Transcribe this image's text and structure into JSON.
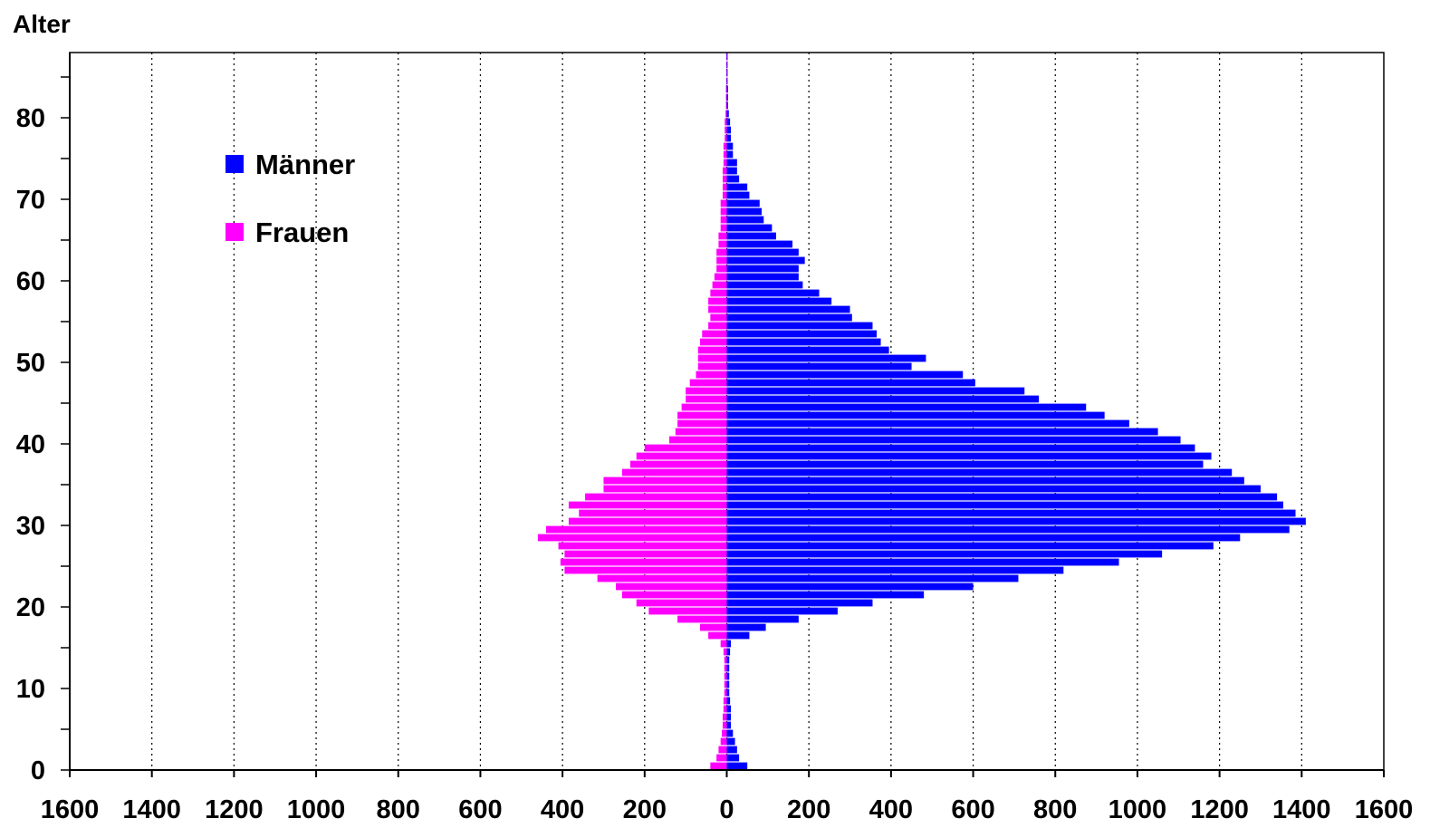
{
  "chart_data": {
    "type": "bar",
    "orientation": "horizontal",
    "subtype": "population-pyramid",
    "y_axis_label": "Alter",
    "x_tick_labels": [
      "1600",
      "1400",
      "1200",
      "1000",
      "800",
      "600",
      "400",
      "200",
      "0",
      "200",
      "400",
      "600",
      "800",
      "1000",
      "1200",
      "1400",
      "1600"
    ],
    "y_tick_labels": [
      "0",
      "10",
      "20",
      "30",
      "40",
      "50",
      "60",
      "70",
      "80"
    ],
    "x_range": [
      -1600,
      1600
    ],
    "y_range": [
      0,
      88
    ],
    "grid": "vertical dotted",
    "legend_position": "top-left",
    "series": [
      {
        "name": "Männer",
        "color": "#0000ff",
        "direction": "right",
        "ages": [
          0,
          1,
          2,
          3,
          4,
          5,
          6,
          7,
          8,
          9,
          10,
          11,
          12,
          13,
          14,
          15,
          16,
          17,
          18,
          19,
          20,
          21,
          22,
          23,
          24,
          25,
          26,
          27,
          28,
          29,
          30,
          31,
          32,
          33,
          34,
          35,
          36,
          37,
          38,
          39,
          40,
          41,
          42,
          43,
          44,
          45,
          46,
          47,
          48,
          49,
          50,
          51,
          52,
          53,
          54,
          55,
          56,
          57,
          58,
          59,
          60,
          61,
          62,
          63,
          64,
          65,
          66,
          67,
          68,
          69,
          70,
          71,
          72,
          73,
          74,
          75,
          76,
          77,
          78,
          79,
          80,
          81,
          82,
          83,
          84,
          85,
          86,
          87
        ],
        "values": [
          50,
          30,
          25,
          20,
          15,
          10,
          10,
          10,
          8,
          6,
          6,
          6,
          6,
          6,
          8,
          10,
          55,
          95,
          175,
          270,
          355,
          480,
          600,
          710,
          820,
          955,
          1060,
          1185,
          1250,
          1370,
          1410,
          1385,
          1355,
          1340,
          1300,
          1260,
          1230,
          1160,
          1180,
          1140,
          1105,
          1050,
          980,
          920,
          875,
          760,
          725,
          605,
          575,
          450,
          485,
          395,
          375,
          365,
          355,
          305,
          300,
          255,
          225,
          185,
          175,
          175,
          190,
          175,
          160,
          120,
          110,
          90,
          85,
          80,
          55,
          50,
          30,
          25,
          25,
          15,
          15,
          10,
          10,
          8,
          5,
          3,
          3,
          3,
          2,
          2,
          2,
          2
        ]
      },
      {
        "name": "Frauen",
        "color": "#ff00ff",
        "direction": "left",
        "ages": [
          0,
          1,
          2,
          3,
          4,
          5,
          6,
          7,
          8,
          9,
          10,
          11,
          12,
          13,
          14,
          15,
          16,
          17,
          18,
          19,
          20,
          21,
          22,
          23,
          24,
          25,
          26,
          27,
          28,
          29,
          30,
          31,
          32,
          33,
          34,
          35,
          36,
          37,
          38,
          39,
          40,
          41,
          42,
          43,
          44,
          45,
          46,
          47,
          48,
          49,
          50,
          51,
          52,
          53,
          54,
          55,
          56,
          57,
          58,
          59,
          60,
          61,
          62,
          63,
          64,
          65,
          66,
          67,
          68,
          69,
          70,
          71,
          72,
          73,
          74,
          75,
          76,
          77,
          78,
          79,
          80,
          81,
          82,
          83,
          84,
          85,
          86,
          87
        ],
        "values": [
          40,
          25,
          20,
          15,
          12,
          10,
          10,
          8,
          8,
          6,
          6,
          6,
          6,
          6,
          8,
          15,
          45,
          65,
          120,
          190,
          220,
          255,
          270,
          315,
          395,
          405,
          395,
          410,
          460,
          440,
          385,
          360,
          385,
          345,
          300,
          300,
          255,
          235,
          220,
          200,
          140,
          125,
          120,
          120,
          110,
          100,
          100,
          90,
          75,
          70,
          70,
          70,
          65,
          60,
          45,
          40,
          45,
          45,
          40,
          35,
          30,
          25,
          25,
          25,
          20,
          20,
          15,
          15,
          15,
          15,
          10,
          10,
          10,
          10,
          8,
          8,
          8,
          5,
          5,
          5,
          3,
          2,
          2,
          2,
          1,
          1,
          1,
          1
        ]
      }
    ]
  }
}
